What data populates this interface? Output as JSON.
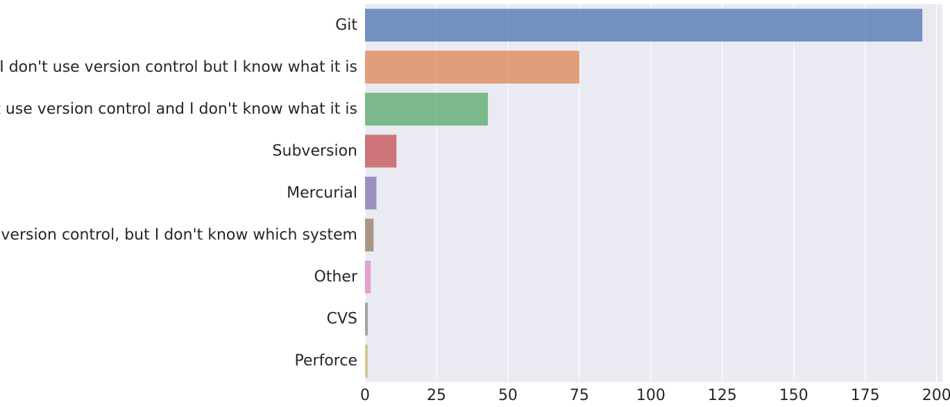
{
  "chart_data": {
    "type": "bar",
    "orientation": "horizontal",
    "title": "",
    "xlabel": "",
    "ylabel": "",
    "categories": [
      "Git",
      "I don't use version control but I know what it is",
      "I don't use version control and I don't know what it is",
      "Subversion",
      "Mercurial",
      "I use version control, but I don't know which system",
      "Other",
      "CVS",
      "Perforce"
    ],
    "values": [
      195,
      75,
      43,
      11,
      4,
      3,
      2,
      1,
      1
    ],
    "colors": [
      "#4c72b0",
      "#dd8452",
      "#55a868",
      "#c44e52",
      "#8172b3",
      "#937860",
      "#da8bc3",
      "#8c8c8c",
      "#ccb974"
    ],
    "xlim": [
      0,
      202
    ],
    "xticks": [
      0,
      25,
      50,
      75,
      100,
      125,
      150,
      175,
      200
    ],
    "grid": true,
    "background": "#eaeaf2",
    "grid_color": "#ffffff"
  }
}
